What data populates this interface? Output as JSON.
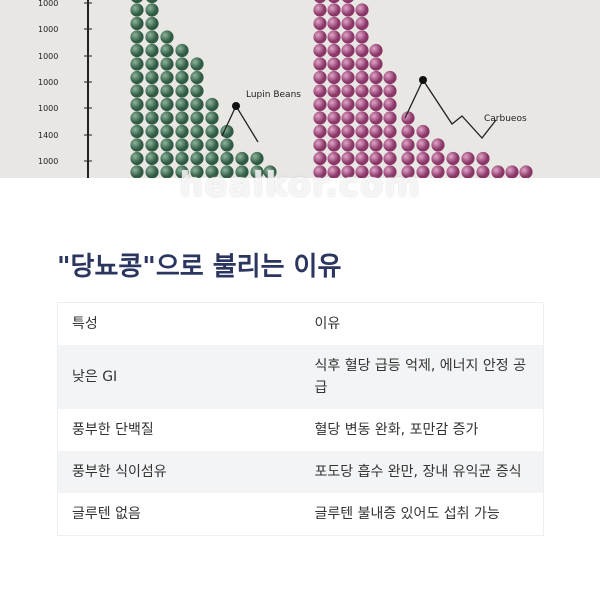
{
  "image": {
    "axis_labels": [
      "1000",
      "1000",
      "1000",
      "1000",
      "1000",
      "1400",
      "1000"
    ],
    "labels": [
      "Lupin Beans",
      "Carbueos"
    ],
    "watermark": "healkor.com"
  },
  "heading": "\"당뇨콩\"으로 불리는 이유",
  "table": {
    "header": [
      "특성",
      "이유"
    ],
    "rows": [
      [
        "낮은 GI",
        "식후 혈당 급등 억제, 에너지 안정 공급"
      ],
      [
        "풍부한 단백질",
        "혈당 변동 완화, 포만감 증가"
      ],
      [
        "풍부한 식이섬유",
        "포도당 흡수 완만, 장내 유익균 증식"
      ],
      [
        "글루텐 없음",
        "글루텐 불내증 있어도 섭취 가능"
      ]
    ]
  }
}
